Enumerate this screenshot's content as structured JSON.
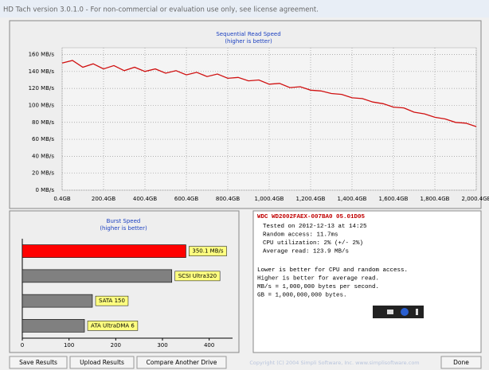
{
  "window": {
    "title": "HD Tach version 3.0.1.0  - For non-commercial or evaluation use only, see license agreement."
  },
  "chart_data": [
    {
      "type": "line",
      "title": "Sequential Read Speed",
      "subtitle": "(higher is better)",
      "x": [
        0.4,
        50.4,
        100.4,
        150.4,
        200.4,
        250.4,
        300.4,
        350.4,
        400.4,
        450.4,
        500.4,
        550.4,
        600.4,
        650.4,
        700.4,
        750.4,
        800.4,
        850.4,
        900.4,
        950.4,
        1000.4,
        1050.4,
        1100.4,
        1150.4,
        1200.4,
        1250.4,
        1300.4,
        1350.4,
        1400.4,
        1450.4,
        1500.4,
        1550.4,
        1600.4,
        1650.4,
        1700.4,
        1750.4,
        1800.4,
        1850.4,
        1900.4,
        1950.4,
        2000.4
      ],
      "series": [
        {
          "color": "#d01010",
          "values": [
            150,
            153,
            145,
            149,
            143,
            147,
            141,
            145,
            140,
            143,
            138,
            141,
            136,
            139,
            134,
            137,
            132,
            133,
            129,
            130,
            125,
            126,
            121,
            122,
            118,
            117,
            114,
            113,
            109,
            108,
            104,
            102,
            98,
            97,
            92,
            90,
            86,
            84,
            80,
            79,
            75
          ]
        }
      ],
      "xlim": [
        0.4,
        2000.4
      ],
      "ylim": [
        0,
        168
      ],
      "xticks": [
        {
          "value": 0.4,
          "label": "0.4GB"
        },
        {
          "value": 200.4,
          "label": "200.4GB"
        },
        {
          "value": 400.4,
          "label": "400.4GB"
        },
        {
          "value": 600.4,
          "label": "600.4GB"
        },
        {
          "value": 800.4,
          "label": "800.4GB"
        },
        {
          "value": 1000.4,
          "label": "1,000.4GB"
        },
        {
          "value": 1200.4,
          "label": "1,200.4GB"
        },
        {
          "value": 1400.4,
          "label": "1,400.4GB"
        },
        {
          "value": 1600.4,
          "label": "1,600.4GB"
        },
        {
          "value": 1800.4,
          "label": "1,800.4GB"
        },
        {
          "value": 2000.4,
          "label": "2,000.4GB"
        }
      ],
      "yticks": [
        {
          "value": 0,
          "label": "0 MB/s"
        },
        {
          "value": 20,
          "label": "20 MB/s"
        },
        {
          "value": 40,
          "label": "40 MB/s"
        },
        {
          "value": 60,
          "label": "60 MB/s"
        },
        {
          "value": 80,
          "label": "80 MB/s"
        },
        {
          "value": 100,
          "label": "100 MB/s"
        },
        {
          "value": 120,
          "label": "120 MB/s"
        },
        {
          "value": 140,
          "label": "140 MB/s"
        },
        {
          "value": 160,
          "label": "160 MB/s"
        }
      ],
      "grid": true
    },
    {
      "type": "hbar",
      "title": "Burst Speed",
      "subtitle": "(higher is better)",
      "categories": [
        "350.1 MB/s",
        "SCSI Ultra320",
        "SATA 150",
        "ATA UltraDMA 6"
      ],
      "values": [
        350.1,
        320,
        150,
        133
      ],
      "colors": [
        "#ff0000",
        "#808080",
        "#808080",
        "#808080"
      ],
      "xlim": [
        0,
        450
      ],
      "xticks": [
        0,
        100,
        200,
        300,
        400
      ]
    }
  ],
  "drive_info": {
    "model": "WDC WD2002FAEX-007BA0 05.01D05",
    "lines": [
      "Tested on 2012-12-13 at 14:25",
      "Random access: 11.7ms",
      "CPU utilization: 2% (+/- 2%)",
      "Average read: 123.9 MB/s"
    ],
    "notes": [
      "Lower is better for CPU and random access.",
      "Higher is better for average read.",
      "MB/s = 1,000,000 bytes per second.",
      "GB = 1,000,000,000 bytes."
    ]
  },
  "buttons": [
    "Save Results",
    "Upload Results",
    "Compare Another Drive",
    "Done"
  ],
  "copyright": "Copyright (C) 2004 Simpli Software, Inc. www.simplisoftware.com"
}
